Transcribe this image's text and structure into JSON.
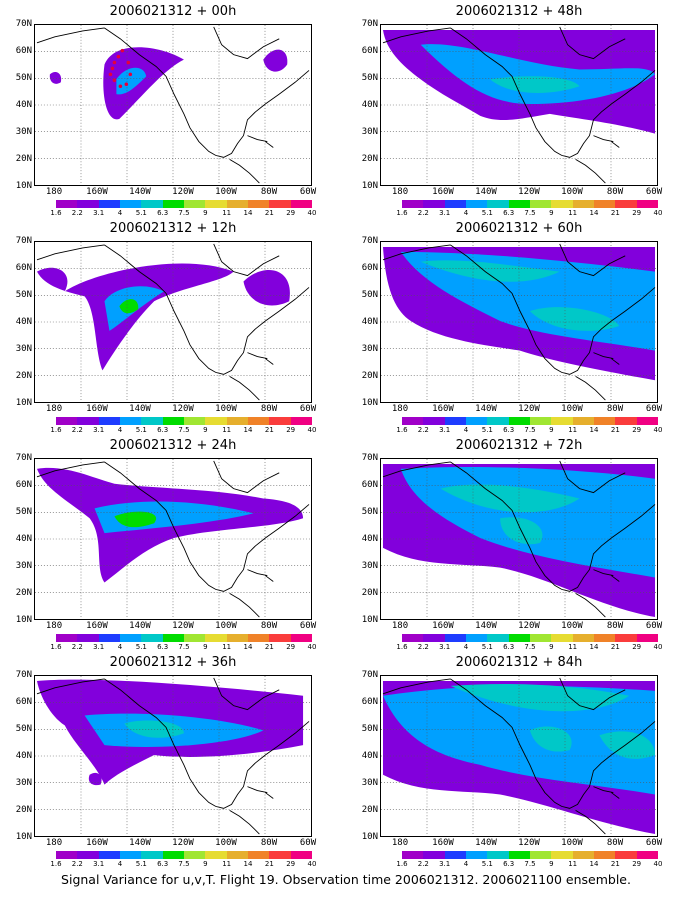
{
  "caption": "Signal Variance for u,v,T. Flight 19. Observation time 2006021312. 2006021100 ensemble.",
  "colorbar": {
    "labels": [
      "1.6",
      "2.2",
      "3.1",
      "4",
      "5.1",
      "6.3",
      "7.5",
      "9",
      "11",
      "14",
      "21",
      "29",
      "40"
    ],
    "colors": [
      "#ffffff",
      "#a000c8",
      "#8200dc",
      "#1e3cff",
      "#00a0ff",
      "#00c8c8",
      "#00dc00",
      "#a0e632",
      "#e6dc32",
      "#e6af2d",
      "#f08228",
      "#fa3c3c",
      "#f00082"
    ]
  },
  "axes": {
    "y_labels": [
      "70N",
      "60N",
      "50N",
      "40N",
      "30N",
      "20N",
      "10N"
    ],
    "x_labels": [
      "180",
      "160W",
      "140W",
      "120W",
      "100W",
      "80W",
      "60W"
    ]
  },
  "panels": [
    {
      "title": "2006021312 + 00h",
      "forecast_hour": 0
    },
    {
      "title": "2006021312 + 48h",
      "forecast_hour": 48
    },
    {
      "title": "2006021312 + 12h",
      "forecast_hour": 12
    },
    {
      "title": "2006021312 + 60h",
      "forecast_hour": 60
    },
    {
      "title": "2006021312 + 24h",
      "forecast_hour": 24
    },
    {
      "title": "2006021312 + 72h",
      "forecast_hour": 72
    },
    {
      "title": "2006021312 + 36h",
      "forecast_hour": 36
    },
    {
      "title": "2006021312 + 84h",
      "forecast_hour": 84
    }
  ]
}
